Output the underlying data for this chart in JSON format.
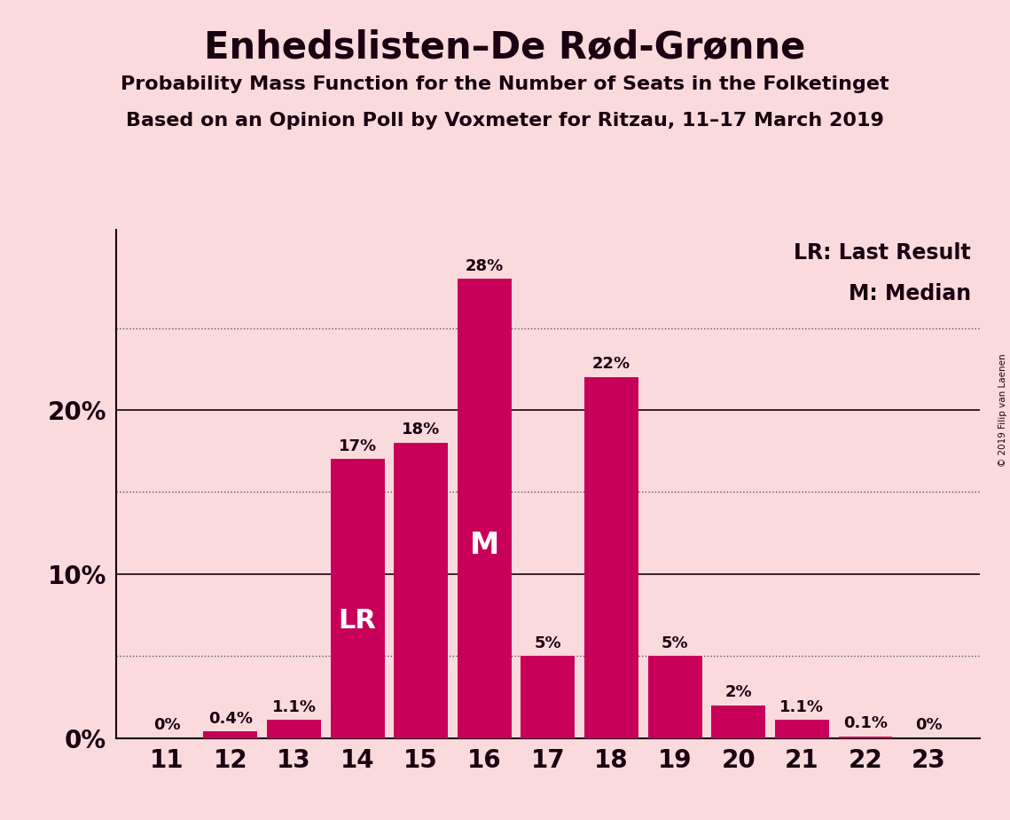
{
  "title": "Enhedslisten–De Rød-Grønne",
  "subtitle1": "Probability Mass Function for the Number of Seats in the Folketinget",
  "subtitle2": "Based on an Opinion Poll by Voxmeter for Ritzau, 11–17 March 2019",
  "copyright": "© 2019 Filip van Laenen",
  "seats": [
    11,
    12,
    13,
    14,
    15,
    16,
    17,
    18,
    19,
    20,
    21,
    22,
    23
  ],
  "probabilities": [
    0.0,
    0.4,
    1.1,
    17.0,
    18.0,
    28.0,
    5.0,
    22.0,
    5.0,
    2.0,
    1.1,
    0.1,
    0.0
  ],
  "bar_color": "#C8005A",
  "background_color": "#FADADD",
  "label_color": "#1A0010",
  "label_texts": [
    "0%",
    "0.4%",
    "1.1%",
    "17%",
    "18%",
    "28%",
    "5%",
    "22%",
    "5%",
    "2%",
    "1.1%",
    "0.1%",
    "0%"
  ],
  "lr_bar": 14,
  "median_bar": 16,
  "ymax": 31,
  "solid_hlines": [
    10,
    20
  ],
  "dotted_hlines": [
    5,
    15,
    25
  ],
  "ytick_positions": [
    0,
    10,
    20
  ],
  "ytick_labels": [
    "0%",
    "10%",
    "20%"
  ],
  "legend_lr": "LR: Last Result",
  "legend_m": "M: Median"
}
